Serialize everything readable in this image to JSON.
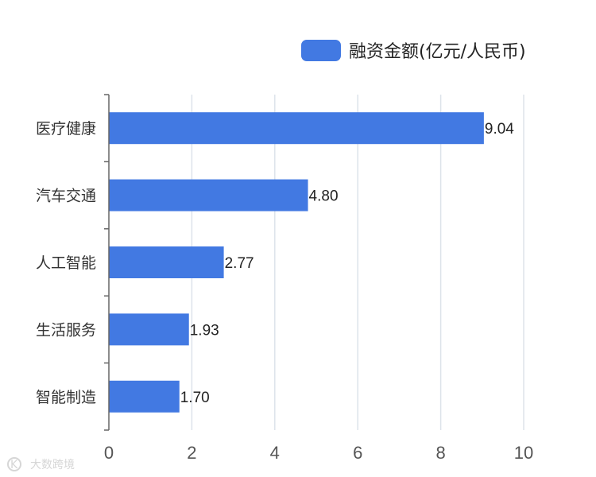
{
  "chart_data": {
    "type": "bar",
    "orientation": "horizontal",
    "categories": [
      "医疗健康",
      "汽车交通",
      "人工智能",
      "生活服务",
      "智能制造"
    ],
    "series": [
      {
        "name": "融资金额(亿元/人民币)",
        "values": [
          9.04,
          4.8,
          2.77,
          1.93,
          1.7
        ],
        "data_labels": [
          "9.04",
          "4.80",
          "2.77",
          "1.93",
          "1.70"
        ],
        "color": "#4279E2"
      }
    ],
    "xlim": [
      0,
      10
    ],
    "x_ticks": [
      0,
      2,
      4,
      6,
      8,
      10
    ],
    "x_tick_labels": [
      "0",
      "2",
      "4",
      "6",
      "8",
      "10"
    ],
    "grid": true,
    "legend_position": "top-right"
  },
  "watermark": {
    "logo_text": "K",
    "text": "大数跨境"
  }
}
